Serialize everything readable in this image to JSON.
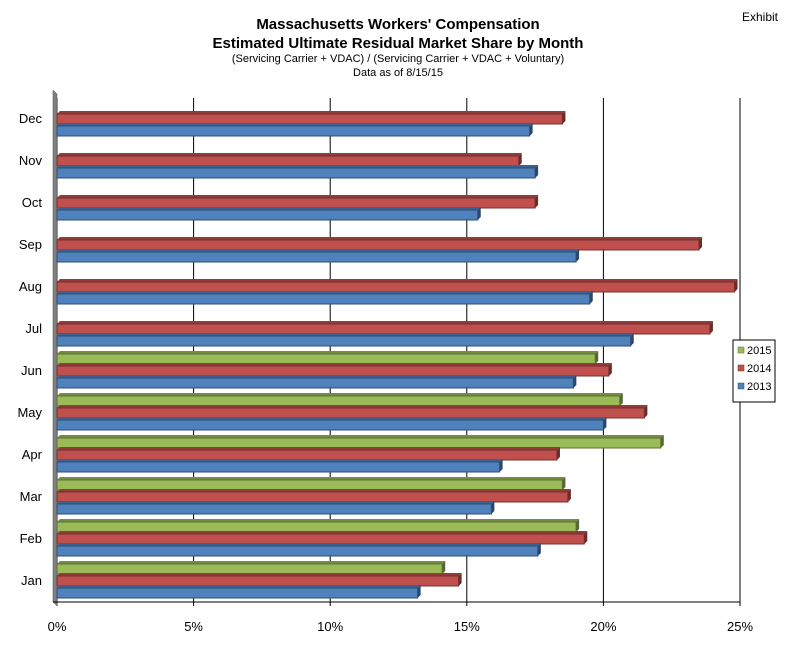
{
  "header": {
    "exhibit": "Exhibit",
    "title_line1": "Massachusetts Workers' Compensation",
    "title_line2": "Estimated Ultimate Residual Market Share by Month",
    "subtitle": "(Servicing Carrier + VDAC) / (Servicing Carrier + VDAC + Voluntary)",
    "as_of": "Data as of 8/15/15"
  },
  "chart_data": {
    "type": "bar",
    "orientation": "horizontal",
    "title": "Massachusetts Workers' Compensation Estimated Ultimate Residual Market Share by Month",
    "categories": [
      "Jan",
      "Feb",
      "Mar",
      "Apr",
      "May",
      "Jun",
      "Jul",
      "Aug",
      "Sep",
      "Oct",
      "Nov",
      "Dec"
    ],
    "series": [
      {
        "name": "2015",
        "color": "#9bbb59",
        "values": [
          14.1,
          19.0,
          18.5,
          22.1,
          20.6,
          19.7,
          null,
          null,
          null,
          null,
          null,
          null
        ]
      },
      {
        "name": "2014",
        "color": "#c0504d",
        "values": [
          14.7,
          19.3,
          18.7,
          18.3,
          21.5,
          20.2,
          23.9,
          24.8,
          23.5,
          17.5,
          16.9,
          18.5
        ]
      },
      {
        "name": "2013",
        "color": "#4f81bd",
        "values": [
          13.2,
          17.6,
          15.9,
          16.2,
          20.0,
          18.9,
          21.0,
          19.5,
          19.0,
          15.4,
          17.5,
          17.3
        ]
      }
    ],
    "x_ticks": [
      "0%",
      "5%",
      "10%",
      "15%",
      "20%",
      "25%"
    ],
    "xlim": [
      0,
      25
    ],
    "legend": {
      "position": "right",
      "entries": [
        "2015",
        "2014",
        "2013"
      ]
    },
    "grid": true
  }
}
